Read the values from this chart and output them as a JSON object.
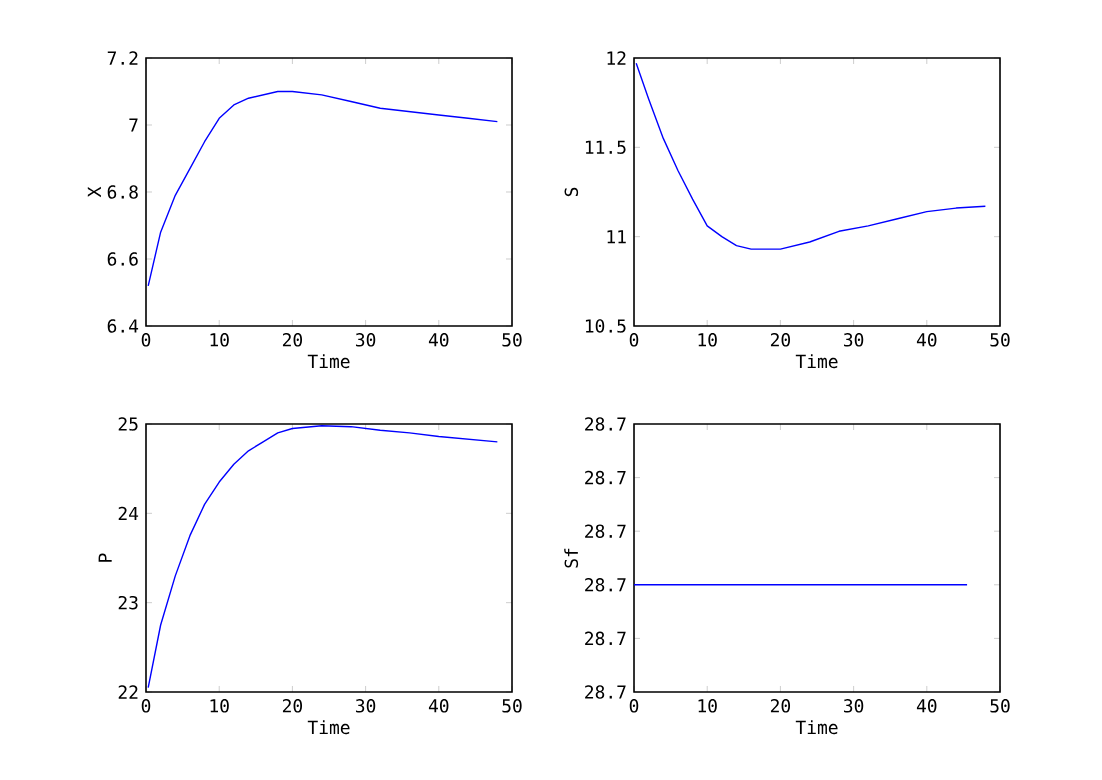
{
  "chart_data": [
    {
      "type": "line",
      "xlabel": "Time",
      "ylabel": "X",
      "color": "#0000ff",
      "x": [
        0.3,
        2,
        4,
        6,
        8,
        10,
        12,
        14,
        16,
        18,
        20,
        24,
        28,
        32,
        36,
        40,
        44,
        48
      ],
      "values": [
        6.52,
        6.68,
        6.79,
        6.87,
        6.95,
        7.02,
        7.06,
        7.08,
        7.09,
        7.1,
        7.1,
        7.09,
        7.07,
        7.05,
        7.04,
        7.03,
        7.02,
        7.01
      ],
      "xlim": [
        0,
        50
      ],
      "ylim": [
        6.4,
        7.2
      ],
      "xticks": [
        0,
        10,
        20,
        30,
        40,
        50
      ],
      "yticks": [
        6.4,
        6.6,
        6.8,
        7,
        7.2
      ]
    },
    {
      "type": "line",
      "xlabel": "Time",
      "ylabel": "S",
      "color": "#0000ff",
      "x": [
        0.3,
        2,
        4,
        6,
        8,
        10,
        12,
        14,
        16,
        18,
        20,
        24,
        28,
        32,
        36,
        40,
        44,
        48
      ],
      "values": [
        11.97,
        11.77,
        11.55,
        11.37,
        11.21,
        11.06,
        11.0,
        10.95,
        10.93,
        10.93,
        10.93,
        10.97,
        11.03,
        11.06,
        11.1,
        11.14,
        11.16,
        11.17
      ],
      "xlim": [
        0,
        50
      ],
      "ylim": [
        10.5,
        12
      ],
      "xticks": [
        0,
        10,
        20,
        30,
        40,
        50
      ],
      "yticks": [
        10.5,
        11,
        11.5,
        12
      ]
    },
    {
      "type": "line",
      "xlabel": "Time",
      "ylabel": "P",
      "color": "#0000ff",
      "x": [
        0.3,
        2,
        4,
        6,
        8,
        10,
        12,
        14,
        16,
        18,
        20,
        24,
        28,
        32,
        36,
        40,
        44,
        48
      ],
      "values": [
        22.05,
        22.75,
        23.3,
        23.75,
        24.1,
        24.35,
        24.55,
        24.7,
        24.8,
        24.9,
        24.95,
        24.98,
        24.97,
        24.93,
        24.9,
        24.86,
        24.83,
        24.8
      ],
      "xlim": [
        0,
        50
      ],
      "ylim": [
        22,
        25
      ],
      "xticks": [
        0,
        10,
        20,
        30,
        40,
        50
      ],
      "yticks": [
        22,
        23,
        24,
        25
      ]
    },
    {
      "type": "line",
      "xlabel": "Time",
      "ylabel": "Sf",
      "color": "#0000ff",
      "x": [
        0,
        45.5
      ],
      "values": [
        28.69997,
        28.69997
      ],
      "xlim": [
        0,
        50
      ],
      "ylim": [
        28.69995,
        28.7
      ],
      "xticks": [
        0,
        10,
        20,
        30,
        40,
        50
      ],
      "yticks": [
        {
          "value": 28.69995,
          "label": "28.7"
        },
        {
          "value": 28.69996,
          "label": "28.7"
        },
        {
          "value": 28.69997,
          "label": "28.7"
        },
        {
          "value": 28.69998,
          "label": "28.7"
        },
        {
          "value": 28.69999,
          "label": "28.7"
        },
        {
          "value": 28.7,
          "label": "28.7"
        }
      ]
    }
  ]
}
